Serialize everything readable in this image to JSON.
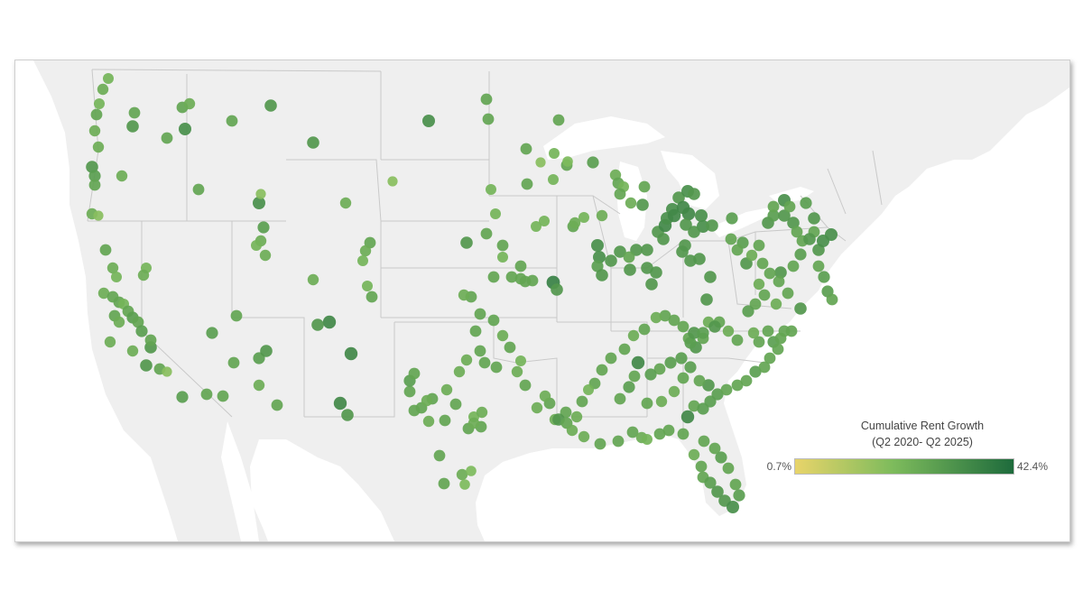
{
  "legend": {
    "title_line1": "Cumulative Rent Growth",
    "title_line2": "(Q2 2020- Q2 2025)",
    "min_label": "0.7%",
    "max_label": "42.4%",
    "min_value": 0.7,
    "max_value": 42.4,
    "color_low": "#e8d46a",
    "color_mid": "#7dbb5c",
    "color_high": "#1e6b3c"
  },
  "colors": {
    "land": "#efefef",
    "water": "#ffffff",
    "border": "#c9c9c9"
  }
}
